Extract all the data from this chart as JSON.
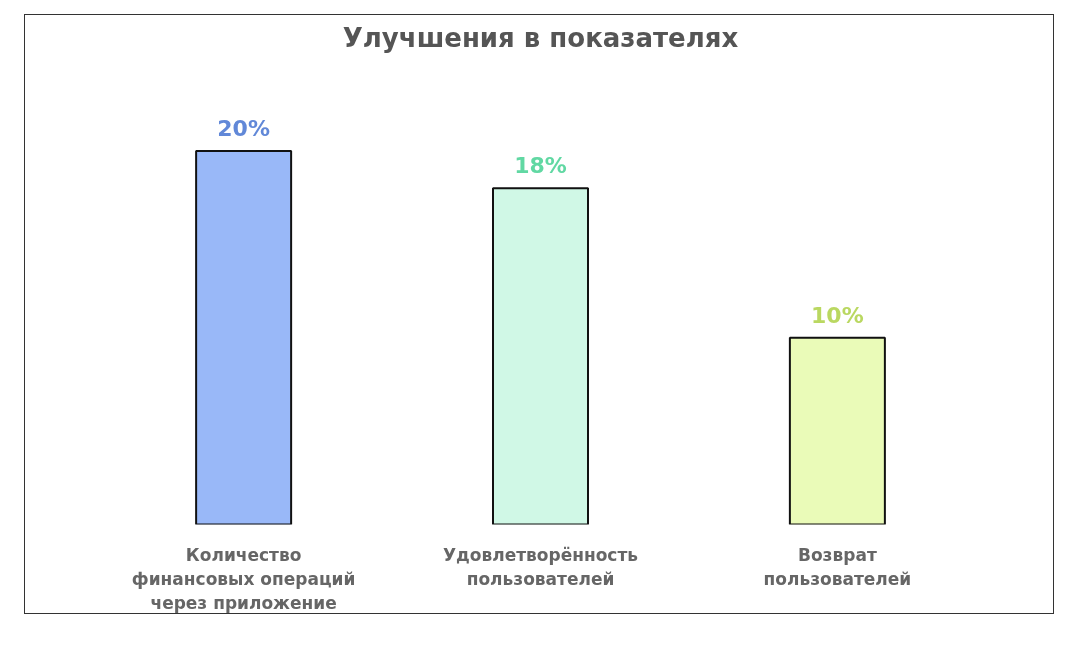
{
  "chart_data": {
    "type": "bar",
    "title": "Улучшения в показателях",
    "categories": [
      "Количество финансовых операций через приложение",
      "Удовлетворённость пользователей",
      "Возврат пользователей"
    ],
    "values": [
      20,
      18,
      10
    ],
    "colors": [
      "#99b8f8",
      "#d0f8e6",
      "#eafbb8"
    ],
    "value_labels": [
      "20%",
      "18%",
      "10%"
    ],
    "tick_labels": "x"
  }
}
